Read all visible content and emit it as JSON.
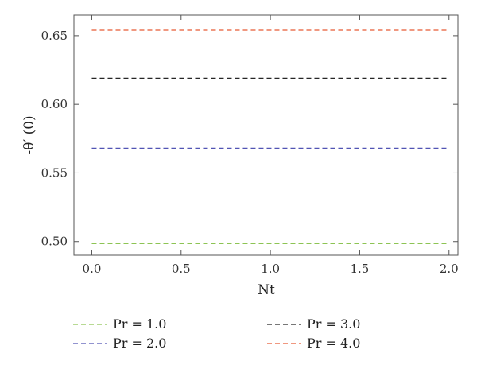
{
  "chart_data": {
    "type": "line",
    "xlabel": "Nt",
    "ylabel": "-θ′ (0)",
    "xlim": [
      -0.1,
      2.05
    ],
    "ylim": [
      0.49,
      0.665
    ],
    "x_ticks": [
      "0.0",
      "0.5",
      "1.0",
      "1.5",
      "2.0"
    ],
    "y_ticks": [
      "0.50",
      "0.55",
      "0.60",
      "0.65"
    ],
    "grid": false,
    "legend_position": "bottom",
    "line_style": "dashed",
    "series": [
      {
        "name": "Pr = 1.0",
        "color": "#8dc454",
        "x": [
          0.0,
          2.0
        ],
        "values": [
          0.4985,
          0.4985
        ]
      },
      {
        "name": "Pr = 3.0",
        "color": "#262626",
        "x": [
          0.0,
          2.0
        ],
        "values": [
          0.619,
          0.619
        ]
      },
      {
        "name": "Pr = 2.0",
        "color": "#5154b4",
        "x": [
          0.0,
          2.0
        ],
        "values": [
          0.568,
          0.568
        ]
      },
      {
        "name": "Pr = 4.0",
        "color": "#e65a34",
        "x": [
          0.0,
          2.0
        ],
        "values": [
          0.654,
          0.654
        ]
      }
    ]
  }
}
